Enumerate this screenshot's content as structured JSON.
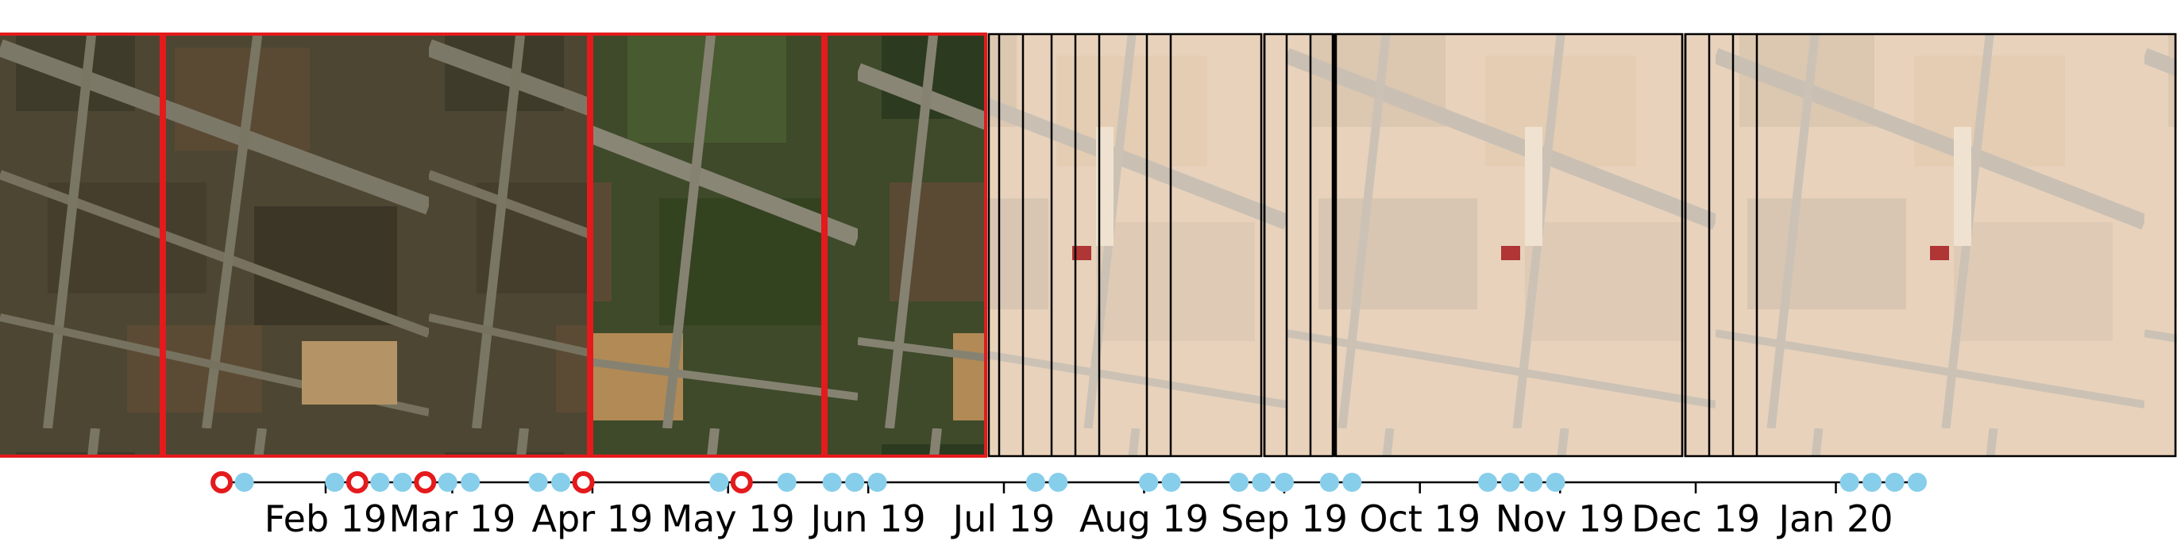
{
  "figure": {
    "description_type": "satellite image time-series strip with acquisition timeline",
    "axis": {
      "start": "2019-01-06",
      "end": "2020-02-01",
      "tick_labels": [
        {
          "date": "2019-02-01",
          "label": "Feb 19"
        },
        {
          "date": "2019-03-01",
          "label": "Mar 19"
        },
        {
          "date": "2019-04-01",
          "label": "Apr 19"
        },
        {
          "date": "2019-05-01",
          "label": "May 19"
        },
        {
          "date": "2019-06-01",
          "label": "Jun 19"
        },
        {
          "date": "2019-07-01",
          "label": "Jul 19"
        },
        {
          "date": "2019-08-01",
          "label": "Aug 19"
        },
        {
          "date": "2019-09-01",
          "label": "Sep 19"
        },
        {
          "date": "2019-10-01",
          "label": "Oct 19"
        },
        {
          "date": "2019-11-01",
          "label": "Nov 19"
        },
        {
          "date": "2019-12-01",
          "label": "Dec 19"
        },
        {
          "date": "2020-01-01",
          "label": "Jan 20"
        }
      ]
    },
    "acquisitions": [
      {
        "date": "2019-01-09",
        "highlighted": true
      },
      {
        "date": "2019-01-14",
        "highlighted": false
      },
      {
        "date": "2019-02-03",
        "highlighted": false
      },
      {
        "date": "2019-02-08",
        "highlighted": true
      },
      {
        "date": "2019-02-13",
        "highlighted": false
      },
      {
        "date": "2019-02-18",
        "highlighted": false
      },
      {
        "date": "2019-02-23",
        "highlighted": true
      },
      {
        "date": "2019-02-28",
        "highlighted": false
      },
      {
        "date": "2019-03-05",
        "highlighted": false
      },
      {
        "date": "2019-03-20",
        "highlighted": false
      },
      {
        "date": "2019-03-25",
        "highlighted": false
      },
      {
        "date": "2019-03-30",
        "highlighted": true
      },
      {
        "date": "2019-04-29",
        "highlighted": false
      },
      {
        "date": "2019-05-04",
        "highlighted": true
      },
      {
        "date": "2019-05-14",
        "highlighted": false
      },
      {
        "date": "2019-05-24",
        "highlighted": false
      },
      {
        "date": "2019-05-29",
        "highlighted": false
      },
      {
        "date": "2019-06-03",
        "highlighted": false
      },
      {
        "date": "2019-07-08",
        "highlighted": false
      },
      {
        "date": "2019-07-13",
        "highlighted": false
      },
      {
        "date": "2019-08-02",
        "highlighted": false
      },
      {
        "date": "2019-08-07",
        "highlighted": false
      },
      {
        "date": "2019-08-22",
        "highlighted": false
      },
      {
        "date": "2019-08-27",
        "highlighted": false
      },
      {
        "date": "2019-09-01",
        "highlighted": false
      },
      {
        "date": "2019-09-11",
        "highlighted": false
      },
      {
        "date": "2019-09-16",
        "highlighted": false
      },
      {
        "date": "2019-10-16",
        "highlighted": false
      },
      {
        "date": "2019-10-21",
        "highlighted": false
      },
      {
        "date": "2019-10-26",
        "highlighted": false
      },
      {
        "date": "2019-10-31",
        "highlighted": false
      },
      {
        "date": "2020-01-04",
        "highlighted": false
      },
      {
        "date": "2020-01-09",
        "highlighted": false
      },
      {
        "date": "2020-01-14",
        "highlighted": false
      },
      {
        "date": "2020-01-19",
        "highlighted": false
      }
    ],
    "image_tiles": [
      {
        "scene": "dark-fields-winter",
        "highlighted": true,
        "faded": false
      },
      {
        "scene": "dark-fields-winter",
        "highlighted": true,
        "faded": false
      },
      {
        "scene": "green-fields-spring",
        "highlighted": true,
        "faded": false
      },
      {
        "scene": "green-fields-spring",
        "highlighted": true,
        "faded": false
      },
      {
        "scene": "hazy-dry-fields",
        "highlighted": false,
        "faded": true
      },
      {
        "scene": "hazy-dry-fields",
        "highlighted": false,
        "faded": true
      },
      {
        "scene": "hazy-dry-fields",
        "highlighted": false,
        "faded": true
      },
      {
        "scene": "hazy-dry-fields",
        "highlighted": false,
        "faded": true
      }
    ],
    "colors": {
      "dot_fill": "#87ceeb",
      "highlight": "#e41a1c",
      "tile_frame": "#000000",
      "axis_line": "#000000",
      "background": "#ffffff"
    }
  }
}
